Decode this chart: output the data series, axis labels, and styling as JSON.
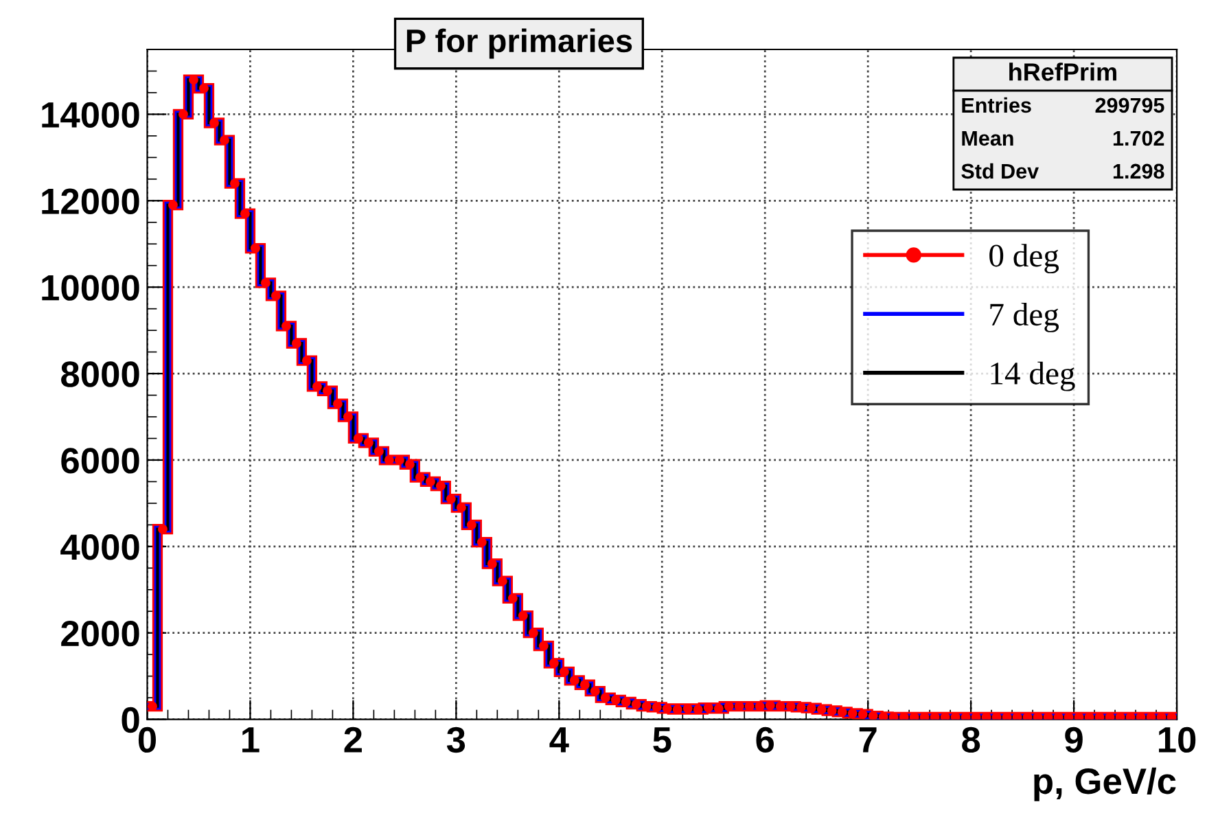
{
  "chart_data": {
    "type": "step",
    "title": "P for primaries",
    "xlabel": "p, GeV/c",
    "x": [
      0.05,
      0.15,
      0.25,
      0.35,
      0.45,
      0.55,
      0.65,
      0.75,
      0.85,
      0.95,
      1.05,
      1.15,
      1.25,
      1.35,
      1.45,
      1.55,
      1.65,
      1.75,
      1.85,
      1.95,
      2.05,
      2.15,
      2.25,
      2.35,
      2.45,
      2.55,
      2.65,
      2.75,
      2.85,
      2.95,
      3.05,
      3.15,
      3.25,
      3.35,
      3.45,
      3.55,
      3.65,
      3.75,
      3.85,
      3.95,
      4.05,
      4.15,
      4.25,
      4.35,
      4.45,
      4.55,
      4.65,
      4.75,
      4.85,
      4.95,
      5.05,
      5.15,
      5.25,
      5.35,
      5.45,
      5.55,
      5.65,
      5.75,
      5.85,
      5.95,
      6.05,
      6.15,
      6.25,
      6.35,
      6.45,
      6.55,
      6.65,
      6.75,
      6.85,
      6.95,
      7.05,
      7.15,
      7.25,
      7.35,
      7.45,
      7.55,
      7.65,
      7.75,
      7.85,
      7.95,
      8.05,
      8.15,
      8.25,
      8.35,
      8.45,
      8.55,
      8.65,
      8.75,
      8.85,
      8.95,
      9.05,
      9.15,
      9.25,
      9.35,
      9.45,
      9.55,
      9.65,
      9.75,
      9.85,
      9.95
    ],
    "series": [
      {
        "name": "0 deg",
        "color": "#ff0000",
        "marker": "circle",
        "values": [
          300,
          4400,
          11900,
          14000,
          14800,
          14600,
          13800,
          13400,
          12400,
          11700,
          10900,
          10100,
          9800,
          9100,
          8700,
          8300,
          7700,
          7600,
          7300,
          7000,
          6500,
          6400,
          6200,
          6000,
          6000,
          5900,
          5600,
          5500,
          5400,
          5100,
          4900,
          4500,
          4100,
          3600,
          3200,
          2800,
          2400,
          2000,
          1700,
          1300,
          1100,
          900,
          800,
          650,
          500,
          450,
          400,
          350,
          300,
          280,
          250,
          230,
          250,
          230,
          270,
          250,
          300,
          300,
          300,
          300,
          320,
          300,
          300,
          280,
          260,
          230,
          200,
          170,
          140,
          120,
          80,
          60,
          50,
          50,
          50,
          50,
          50,
          50,
          50,
          50,
          50,
          50,
          50,
          50,
          50,
          50,
          50,
          50,
          50,
          50,
          50,
          50,
          50,
          50,
          50,
          50,
          50,
          50,
          50,
          50
        ]
      },
      {
        "name": "7 deg",
        "color": "#0000ff",
        "marker": "none",
        "values": [
          300,
          4400,
          11900,
          14000,
          14800,
          14600,
          13800,
          13400,
          12400,
          11700,
          10900,
          10100,
          9800,
          9100,
          8700,
          8300,
          7700,
          7600,
          7300,
          7000,
          6500,
          6400,
          6200,
          6000,
          6000,
          5900,
          5600,
          5500,
          5400,
          5100,
          4900,
          4500,
          4100,
          3600,
          3200,
          2800,
          2400,
          2000,
          1700,
          1300,
          1100,
          900,
          800,
          650,
          500,
          450,
          400,
          350,
          300,
          280,
          250,
          230,
          250,
          230,
          270,
          250,
          300,
          300,
          300,
          300,
          320,
          300,
          300,
          280,
          260,
          230,
          200,
          170,
          140,
          120,
          80,
          60,
          50,
          50,
          50,
          50,
          50,
          50,
          50,
          50,
          50,
          50,
          50,
          50,
          50,
          50,
          50,
          50,
          50,
          50,
          50,
          50,
          50,
          50,
          50,
          50,
          50,
          50,
          50,
          50
        ]
      },
      {
        "name": "14 deg",
        "color": "#000000",
        "marker": "none",
        "values": [
          300,
          4400,
          11900,
          14000,
          14800,
          14600,
          13800,
          13400,
          12400,
          11700,
          10900,
          10100,
          9800,
          9100,
          8700,
          8300,
          7700,
          7600,
          7300,
          7000,
          6500,
          6400,
          6200,
          6000,
          6000,
          5900,
          5600,
          5500,
          5400,
          5100,
          4900,
          4500,
          4100,
          3600,
          3200,
          2800,
          2400,
          2000,
          1700,
          1300,
          1100,
          900,
          800,
          650,
          500,
          450,
          400,
          350,
          300,
          280,
          250,
          230,
          250,
          230,
          270,
          250,
          300,
          300,
          300,
          300,
          320,
          300,
          300,
          280,
          260,
          230,
          200,
          170,
          140,
          120,
          80,
          60,
          50,
          50,
          50,
          50,
          50,
          50,
          50,
          50,
          50,
          50,
          50,
          50,
          50,
          50,
          50,
          50,
          50,
          50,
          50,
          50,
          50,
          50,
          50,
          50,
          50,
          50,
          50,
          50
        ]
      }
    ],
    "xlim": [
      0,
      10
    ],
    "xticks": [
      0,
      1,
      2,
      3,
      4,
      5,
      6,
      7,
      8,
      9,
      10
    ],
    "ylim": [
      0,
      15500
    ],
    "yticks": [
      0,
      2000,
      4000,
      6000,
      8000,
      10000,
      12000,
      14000
    ],
    "grid": true,
    "legend": "right",
    "annotations": [
      "hRefPrim",
      "Entries 299795",
      "Mean 1.702",
      "Std Dev 1.298"
    ]
  }
}
